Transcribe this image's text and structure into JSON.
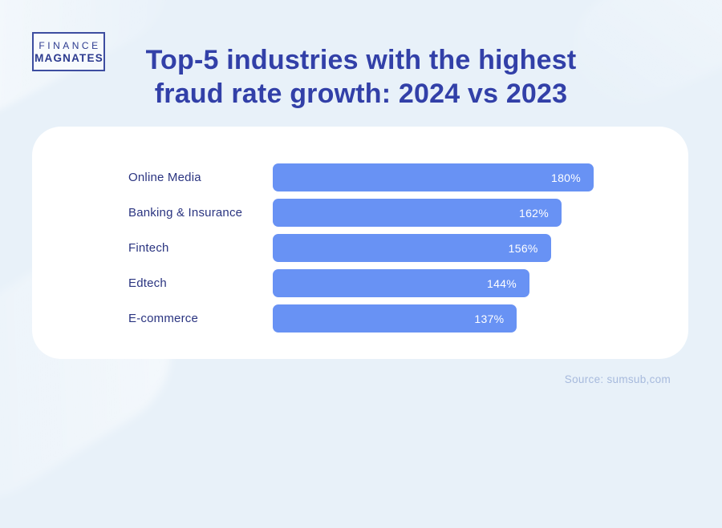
{
  "logo": {
    "line1": "FINANCE",
    "line2": "MAGNATES"
  },
  "header": {
    "title_line1": "Top-5 industries with the highest",
    "title_line2": "fraud rate growth: 2024 vs 2023"
  },
  "chart_data": {
    "type": "bar",
    "orientation": "horizontal",
    "title": "Top-5 industries with the highest fraud rate growth: 2024 vs 2023",
    "categories": [
      "Online Media",
      "Banking & Insurance",
      "Fintech",
      "Edtech",
      "E-commerce"
    ],
    "values": [
      180,
      162,
      156,
      144,
      137
    ],
    "value_labels": [
      "180%",
      "162%",
      "156%",
      "144%",
      "137%"
    ],
    "unit": "%",
    "xlim": [
      0,
      180
    ],
    "grid": false,
    "legend": false,
    "colors": {
      "bar": "#6892f4",
      "bar_value_text": "#ffffff",
      "category_label": "#2a3480",
      "title": "#3240a8",
      "background": "#e8f1f9",
      "card": "#ffffff",
      "source_text": "#a7badd"
    }
  },
  "footer": {
    "source": "Source: sumsub,com"
  }
}
